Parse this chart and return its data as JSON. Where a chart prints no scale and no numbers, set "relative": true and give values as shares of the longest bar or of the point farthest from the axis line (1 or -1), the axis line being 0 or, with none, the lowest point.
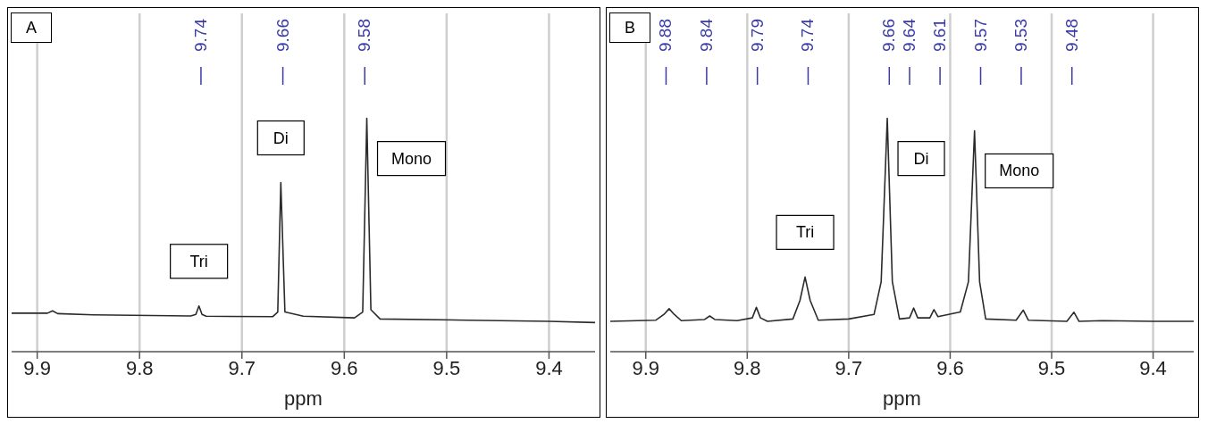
{
  "chart_data": [
    {
      "type": "line",
      "title": "A",
      "xlabel": "ppm",
      "relative": true,
      "grid": "x",
      "marker": "none",
      "line_style": "solid",
      "xlim": [
        9.925,
        9.355
      ],
      "xticks": [
        9.9,
        9.8,
        9.7,
        9.6,
        9.5,
        9.4
      ],
      "series": [
        {
          "color": "#2b2b2b",
          "x": [
            9.925,
            9.89,
            9.885,
            9.88,
            9.845,
            9.75,
            9.745,
            9.742,
            9.739,
            9.735,
            9.67,
            9.665,
            9.662,
            9.658,
            9.64,
            9.59,
            9.582,
            9.578,
            9.574,
            9.565,
            9.48,
            9.4,
            9.355
          ],
          "values": [
            0.165,
            0.165,
            0.175,
            0.163,
            0.158,
            0.153,
            0.16,
            0.196,
            0.16,
            0.152,
            0.15,
            0.17,
            0.725,
            0.17,
            0.152,
            0.145,
            0.17,
            1,
            0.18,
            0.14,
            0.135,
            0.13,
            0.125
          ]
        }
      ],
      "annotations": [
        {
          "text": "9.74",
          "x": 9.74
        },
        {
          "text": "9.66",
          "x": 9.66
        },
        {
          "text": "9.58",
          "x": 9.58
        },
        {
          "text": "Tri",
          "x": 9.742,
          "y": 0.196
        },
        {
          "text": "Di",
          "x": 9.662,
          "y": 0.725
        },
        {
          "text": "Mono",
          "x": 9.578,
          "y": 1
        }
      ]
    },
    {
      "type": "line",
      "title": "B",
      "xlabel": "ppm",
      "relative": true,
      "grid": "x",
      "marker": "none",
      "line_style": "solid",
      "xlim": [
        9.935,
        9.36
      ],
      "xticks": [
        9.9,
        9.8,
        9.7,
        9.6,
        9.5,
        9.4
      ],
      "series": [
        {
          "color": "#2b2b2b",
          "x": [
            9.935,
            9.89,
            9.882,
            9.877,
            9.872,
            9.865,
            9.842,
            9.837,
            9.832,
            9.81,
            9.795,
            9.791,
            9.787,
            9.78,
            9.755,
            9.748,
            9.743,
            9.738,
            9.73,
            9.7,
            9.675,
            9.668,
            9.662,
            9.657,
            9.65,
            9.64,
            9.636,
            9.632,
            9.62,
            9.616,
            9.612,
            9.59,
            9.582,
            9.576,
            9.571,
            9.565,
            9.535,
            9.528,
            9.523,
            9.485,
            9.478,
            9.473,
            9.45,
            9.4,
            9.36
          ],
          "values": [
            0.13,
            0.135,
            0.16,
            0.184,
            0.16,
            0.133,
            0.138,
            0.153,
            0.138,
            0.133,
            0.145,
            0.19,
            0.145,
            0.13,
            0.14,
            0.22,
            0.32,
            0.22,
            0.135,
            0.14,
            0.16,
            0.3,
            1,
            0.3,
            0.14,
            0.145,
            0.187,
            0.145,
            0.145,
            0.18,
            0.15,
            0.17,
            0.3,
            0.947,
            0.3,
            0.14,
            0.135,
            0.178,
            0.135,
            0.13,
            0.169,
            0.13,
            0.133,
            0.13,
            0.13
          ]
        }
      ],
      "annotations": [
        {
          "text": "9.88",
          "x": 9.88
        },
        {
          "text": "9.84",
          "x": 9.84
        },
        {
          "text": "9.79",
          "x": 9.79
        },
        {
          "text": "9.74",
          "x": 9.74
        },
        {
          "text": "9.66",
          "x": 9.66
        },
        {
          "text": "9.64",
          "x": 9.64
        },
        {
          "text": "9.61",
          "x": 9.61
        },
        {
          "text": "9.57",
          "x": 9.57
        },
        {
          "text": "9.53",
          "x": 9.53
        },
        {
          "text": "9.48",
          "x": 9.48
        },
        {
          "text": "Tri",
          "x": 9.743,
          "y": 0.32
        },
        {
          "text": "Di",
          "x": 9.662,
          "y": 1
        },
        {
          "text": "Mono",
          "x": 9.576,
          "y": 0.947
        }
      ]
    }
  ]
}
